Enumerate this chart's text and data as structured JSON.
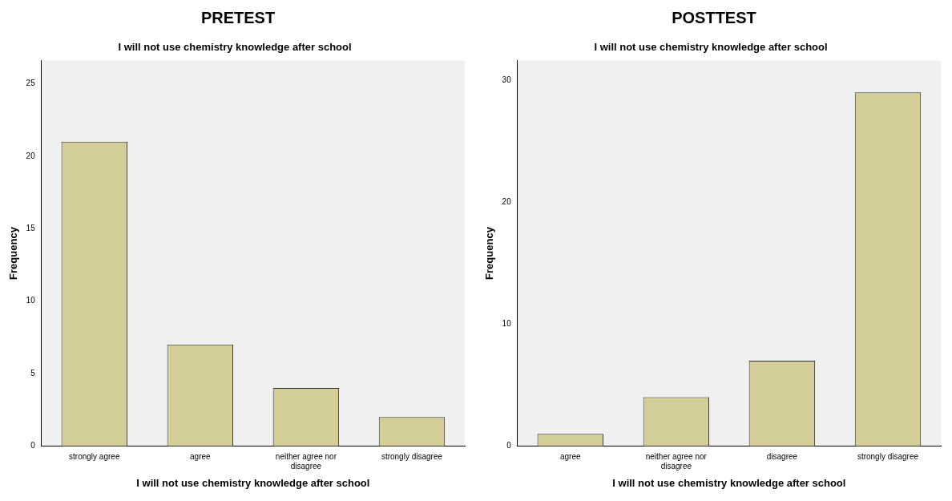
{
  "chart_data": [
    {
      "type": "bar",
      "title": "PRETEST",
      "subtitle": "I will not use chemistry knowledge after school",
      "xlabel": "I will not use chemistry knowledge after school",
      "ylabel": "Frequency",
      "categories": [
        "strongly agree",
        "agree",
        "neither agree nor disagree",
        "strongly disagree"
      ],
      "values": [
        21,
        7,
        4,
        2
      ],
      "color": "#d3ce98",
      "ylim": [
        0,
        26.6
      ],
      "yticks": [
        0,
        5,
        10,
        15,
        20,
        25
      ],
      "grid": false,
      "legend": false
    },
    {
      "type": "bar",
      "title": "POSTTEST",
      "subtitle": "I will not use chemistry knowledge after school",
      "xlabel": "I will not use chemistry knowledge after school",
      "ylabel": "Frequency",
      "categories": [
        "agree",
        "neither agree nor disagree",
        "disagree",
        "strongly disagree"
      ],
      "values": [
        1,
        4,
        7,
        29
      ],
      "color": "#d3ce98",
      "ylim": [
        0,
        31.6
      ],
      "yticks": [
        0,
        10,
        20,
        30
      ],
      "grid": false,
      "legend": false
    }
  ]
}
